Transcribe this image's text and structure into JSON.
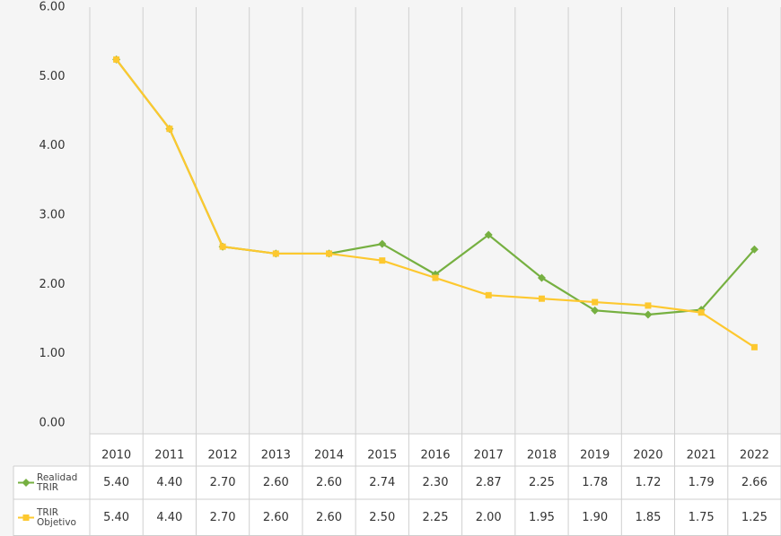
{
  "chart_data": {
    "type": "line",
    "categories": [
      "2010",
      "2011",
      "2012",
      "2013",
      "2014",
      "2015",
      "2016",
      "2017",
      "2018",
      "2019",
      "2020",
      "2021",
      "2022"
    ],
    "series": [
      {
        "name": "Realidad TRIR",
        "color": "#76b041",
        "marker": "diamond",
        "values": [
          5.4,
          4.4,
          2.7,
          2.6,
          2.6,
          2.74,
          2.3,
          2.87,
          2.25,
          1.78,
          1.72,
          1.79,
          2.66
        ],
        "value_labels": [
          "5.40",
          "4.40",
          "2.70",
          "2.60",
          "2.60",
          "2.74",
          "2.30",
          "2.87",
          "2.25",
          "1.78",
          "1.72",
          "1.79",
          "2.66"
        ]
      },
      {
        "name": "TRIR Objetivo",
        "color": "#fdc82f",
        "marker": "square",
        "values": [
          5.4,
          4.4,
          2.7,
          2.6,
          2.6,
          2.5,
          2.25,
          2.0,
          1.95,
          1.9,
          1.85,
          1.75,
          1.25
        ],
        "value_labels": [
          "5.40",
          "4.40",
          "2.70",
          "2.60",
          "2.60",
          "2.50",
          "2.25",
          "2.00",
          "1.95",
          "1.90",
          "1.85",
          "1.75",
          "1.25"
        ]
      }
    ],
    "ylim": [
      0,
      6
    ],
    "yticks": [
      {
        "value": 0,
        "label": "0.00"
      },
      {
        "value": 1,
        "label": "1.00"
      },
      {
        "value": 2,
        "label": "2.00"
      },
      {
        "value": 3,
        "label": "3.00"
      },
      {
        "value": 4,
        "label": "4.00"
      },
      {
        "value": 5,
        "label": "5.00"
      },
      {
        "value": 6,
        "label": "6.00"
      }
    ],
    "grid": true
  }
}
